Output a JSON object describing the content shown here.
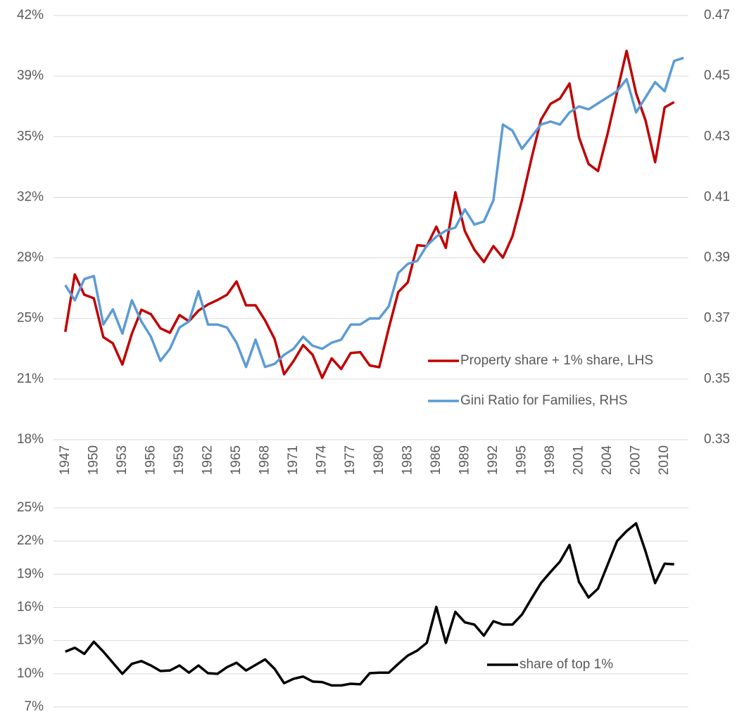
{
  "chart_data": [
    {
      "type": "line",
      "categories": [
        "1947",
        null,
        null,
        "1950",
        null,
        null,
        "1953",
        null,
        null,
        "1956",
        null,
        null,
        "1959",
        null,
        null,
        "1962",
        null,
        null,
        "1965",
        null,
        null,
        "1968",
        null,
        null,
        "1971",
        null,
        null,
        "1974",
        null,
        null,
        "1977",
        null,
        null,
        "1980",
        null,
        null,
        "1983",
        null,
        null,
        "1986",
        null,
        null,
        "1989",
        null,
        null,
        "1992",
        null,
        null,
        "1995",
        null,
        null,
        "1998",
        null,
        null,
        "2001",
        null,
        null,
        "2004",
        null,
        null,
        "2007",
        null,
        null,
        "2010",
        null,
        null
      ],
      "series": [
        {
          "name": "Property share + 1% share, LHS",
          "color": "#c00000",
          "values": [
            24.1,
            27.35,
            26.2,
            26.0,
            23.8,
            23.45,
            22.25,
            24.0,
            25.35,
            25.1,
            24.3,
            24.05,
            25.05,
            24.7,
            25.3,
            25.65,
            25.9,
            26.2,
            26.95,
            25.6,
            25.6,
            24.75,
            23.7,
            21.7,
            22.45,
            23.35,
            22.8,
            21.5,
            22.6,
            22.0,
            22.9,
            22.95,
            22.2,
            22.1,
            24.3,
            26.35,
            26.9,
            29.0,
            28.95,
            30.05,
            28.85,
            32.0,
            29.8,
            28.75,
            28.05,
            28.95,
            28.3,
            29.5,
            31.55,
            33.9,
            36.1,
            37.0,
            37.3,
            38.15,
            35.1,
            33.6,
            33.2,
            35.3,
            37.65,
            40.0,
            37.6,
            36.05,
            33.7,
            36.8,
            37.1,
            null
          ]
        },
        {
          "name": "Gini Ratio for Families, RHS",
          "color": "#5b9bd5",
          "axis": "y2",
          "values": [
            0.381,
            0.376,
            0.383,
            0.384,
            0.368,
            0.373,
            0.365,
            0.376,
            0.369,
            0.364,
            0.356,
            0.36,
            0.367,
            0.369,
            0.379,
            0.368,
            0.368,
            0.367,
            0.362,
            0.354,
            0.363,
            0.354,
            0.355,
            0.358,
            0.36,
            0.364,
            0.361,
            0.36,
            0.362,
            0.363,
            0.368,
            0.368,
            0.37,
            0.37,
            0.374,
            0.385,
            0.388,
            0.389,
            0.394,
            0.397,
            0.399,
            0.4,
            0.406,
            0.401,
            0.402,
            0.409,
            0.434,
            0.432,
            0.426,
            0.43,
            0.434,
            0.435,
            0.434,
            0.438,
            0.44,
            0.439,
            0.441,
            0.443,
            0.445,
            0.449,
            0.438,
            0.443,
            0.448,
            0.445,
            0.455,
            0.456
          ]
        }
      ],
      "ylim": [
        18,
        42
      ],
      "yticks": [
        {
          "value": 18,
          "label": "18%"
        },
        {
          "value": 21.43,
          "label": "21%"
        },
        {
          "value": 24.86,
          "label": "25%"
        },
        {
          "value": 28.29,
          "label": "28%"
        },
        {
          "value": 31.71,
          "label": "32%"
        },
        {
          "value": 35.14,
          "label": "35%"
        },
        {
          "value": 38.57,
          "label": "39%"
        },
        {
          "value": 42,
          "label": "42%"
        }
      ],
      "y2lim": [
        0.33,
        0.47
      ],
      "y2ticks": [
        0.33,
        0.35,
        0.37,
        0.39,
        0.41,
        0.43,
        0.45,
        0.47
      ],
      "grid": true,
      "legend": "lower right"
    },
    {
      "type": "line",
      "categories": [
        null,
        null,
        null,
        null,
        null,
        null,
        null,
        null,
        null,
        null,
        null,
        null,
        null,
        null,
        null,
        null,
        null,
        null,
        null,
        null,
        null,
        null,
        null,
        null,
        null,
        null,
        null,
        null,
        null,
        null,
        null,
        null,
        null,
        null,
        null,
        null,
        null,
        null,
        null,
        null,
        null,
        null,
        null,
        null,
        null,
        null,
        null,
        null,
        null,
        null,
        null,
        null,
        null,
        null,
        null,
        null,
        null,
        null,
        null,
        null,
        null,
        null,
        null,
        null,
        null,
        null
      ],
      "series": [
        {
          "name": "share of top 1%",
          "color": "#000000",
          "values": [
            12.0,
            12.35,
            11.8,
            12.9,
            12.0,
            11.0,
            10.0,
            10.9,
            11.15,
            10.75,
            10.25,
            10.3,
            10.75,
            10.1,
            10.75,
            10.05,
            10.0,
            10.6,
            11.0,
            10.3,
            10.8,
            11.3,
            10.45,
            9.15,
            9.55,
            9.75,
            9.3,
            9.25,
            8.95,
            8.95,
            9.1,
            9.05,
            10.05,
            10.1,
            10.1,
            10.9,
            11.65,
            12.1,
            12.8,
            16.05,
            12.8,
            15.6,
            14.65,
            14.45,
            13.45,
            14.75,
            14.45,
            14.45,
            15.35,
            16.8,
            18.2,
            19.2,
            20.15,
            21.65,
            18.3,
            16.9,
            17.7,
            19.85,
            22.0,
            22.9,
            23.6,
            21.05,
            18.2,
            19.95,
            19.9,
            null
          ]
        }
      ],
      "ylim": [
        7,
        25
      ],
      "yticks": [
        {
          "value": 7,
          "label": "7%"
        },
        {
          "value": 10,
          "label": "10%"
        },
        {
          "value": 13,
          "label": "13%"
        },
        {
          "value": 16,
          "label": "16%"
        },
        {
          "value": 19,
          "label": "19%"
        },
        {
          "value": 22,
          "label": "22%"
        },
        {
          "value": 25,
          "label": "25%"
        }
      ],
      "grid": true,
      "legend": "lower right"
    }
  ]
}
